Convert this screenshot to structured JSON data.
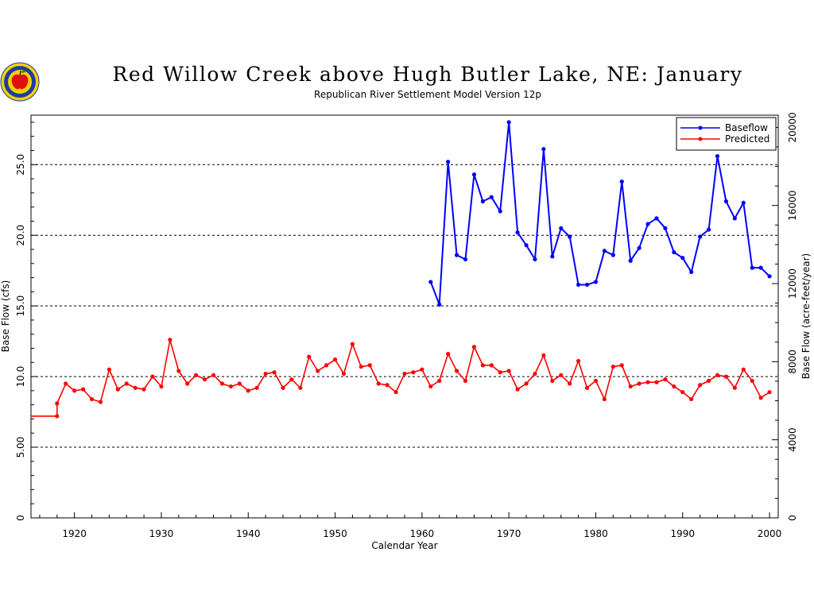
{
  "chart_data": {
    "type": "line",
    "title": "Red Willow Creek above Hugh Butler Lake, NE: January",
    "subtitle": "Republican River Settlement Model Version 12p",
    "xlabel": "Calendar Year",
    "ylabel": "Base Flow (cfs)",
    "y2label": "Base Flow (acre-feet/year)",
    "xlim": [
      1915,
      2001
    ],
    "ylim": [
      0,
      28.5
    ],
    "y2lim": [
      0,
      20627
    ],
    "xticks": [
      1920,
      1930,
      1940,
      1950,
      1960,
      1970,
      1980,
      1990,
      2000
    ],
    "yticks": [
      0,
      5,
      10,
      15,
      20,
      25
    ],
    "ytick_labels": [
      "0",
      "5.00",
      "10.0",
      "15.0",
      "20.0",
      "25.0"
    ],
    "y2ticks": [
      0,
      4000,
      8000,
      12000,
      16000,
      20000
    ],
    "grid_y": [
      5,
      10,
      15,
      20,
      25
    ],
    "legend_position": "top-right",
    "series": [
      {
        "name": "Baseflow",
        "color": "#0000ff",
        "x": [
          1961,
          1962,
          1963,
          1964,
          1965,
          1966,
          1967,
          1968,
          1969,
          1970,
          1971,
          1972,
          1973,
          1974,
          1975,
          1976,
          1977,
          1978,
          1979,
          1980,
          1981,
          1982,
          1983,
          1984,
          1985,
          1986,
          1987,
          1988,
          1989,
          1990,
          1991,
          1992,
          1993,
          1994,
          1995,
          1996,
          1997,
          1998,
          1999,
          2000
        ],
        "values": [
          16.7,
          15.1,
          25.2,
          18.6,
          18.3,
          24.3,
          22.4,
          22.7,
          21.7,
          28.0,
          20.2,
          19.3,
          18.3,
          26.1,
          18.5,
          20.5,
          19.9,
          16.5,
          16.5,
          16.7,
          18.9,
          18.6,
          23.8,
          18.2,
          19.1,
          20.8,
          21.2,
          20.5,
          18.8,
          18.4,
          17.4,
          19.9,
          20.4,
          25.6,
          22.4,
          21.2,
          22.3,
          17.7,
          17.7,
          17.1
        ]
      },
      {
        "name": "Predicted",
        "color": "#ff0000",
        "x": [
          1915,
          1918,
          1918,
          1919,
          1920,
          1921,
          1922,
          1923,
          1924,
          1925,
          1926,
          1927,
          1928,
          1929,
          1930,
          1931,
          1932,
          1933,
          1934,
          1935,
          1936,
          1937,
          1938,
          1939,
          1940,
          1941,
          1942,
          1943,
          1944,
          1945,
          1946,
          1947,
          1948,
          1949,
          1950,
          1951,
          1952,
          1953,
          1954,
          1955,
          1956,
          1957,
          1958,
          1959,
          1960,
          1961,
          1962,
          1963,
          1964,
          1965,
          1966,
          1967,
          1968,
          1969,
          1970,
          1971,
          1972,
          1973,
          1974,
          1975,
          1976,
          1977,
          1978,
          1979,
          1980,
          1981,
          1982,
          1983,
          1984,
          1985,
          1986,
          1987,
          1988,
          1989,
          1990,
          1991,
          1992,
          1993,
          1994,
          1995,
          1996,
          1997,
          1998,
          1999,
          2000
        ],
        "values": [
          7.2,
          7.2,
          8.1,
          9.5,
          9.0,
          9.1,
          8.4,
          8.2,
          10.5,
          9.1,
          9.5,
          9.2,
          9.1,
          10.0,
          9.3,
          12.6,
          10.4,
          9.5,
          10.1,
          9.8,
          10.1,
          9.5,
          9.3,
          9.5,
          9.0,
          9.2,
          10.2,
          10.3,
          9.2,
          9.8,
          9.2,
          11.4,
          10.4,
          10.8,
          11.2,
          10.2,
          12.3,
          10.7,
          10.8,
          9.5,
          9.4,
          8.9,
          10.2,
          10.3,
          10.5,
          9.3,
          9.7,
          11.6,
          10.4,
          9.7,
          12.1,
          10.8,
          10.8,
          10.3,
          10.4,
          9.1,
          9.5,
          10.2,
          11.5,
          9.7,
          10.1,
          9.5,
          11.1,
          9.2,
          9.7,
          8.4,
          10.7,
          10.8,
          9.3,
          9.5,
          9.6,
          9.6,
          9.8,
          9.3,
          8.9,
          8.4,
          9.4,
          9.7,
          10.1,
          10.0,
          9.2,
          10.5,
          9.7,
          8.5,
          8.9
        ]
      }
    ]
  },
  "logo": {
    "name": "apple-seal-logo",
    "colors": [
      "#1a3fa0",
      "#f5d000",
      "#e01010",
      "#2a8a2a"
    ]
  }
}
